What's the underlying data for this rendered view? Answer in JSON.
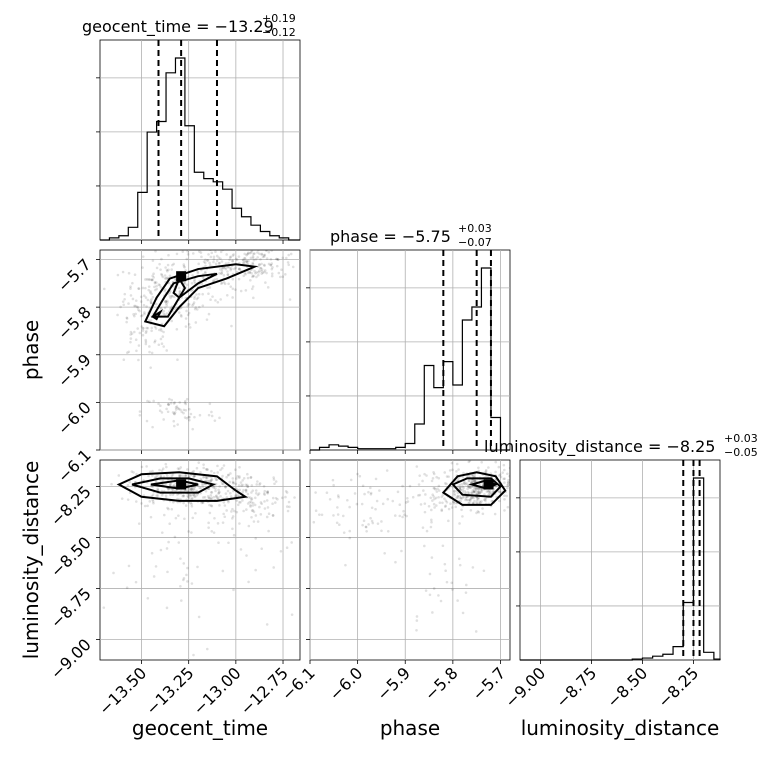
{
  "chart_data": {
    "type": "corner",
    "parameters": [
      "geocent_time",
      "phase",
      "luminosity_distance"
    ],
    "axis_labels": {
      "geocent_time": "geocent_time",
      "phase": "phase",
      "luminosity_distance": "luminosity_distance"
    },
    "ranges": {
      "geocent_time": [
        -13.72,
        -12.66
      ],
      "phase": [
        -6.1,
        -5.68
      ],
      "luminosity_distance": [
        -9.1,
        -8.12
      ]
    },
    "ticks": {
      "geocent_time": [
        -13.5,
        -13.25,
        -13.0,
        -12.75
      ],
      "phase": [
        -6.1,
        -6.0,
        -5.9,
        -5.8,
        -5.7
      ],
      "luminosity_distance": [
        -9.0,
        -8.75,
        -8.5,
        -8.25
      ]
    },
    "tick_labels": {
      "geocent_time": [
        "−13.50",
        "−13.25",
        "−13.00",
        "−12.75"
      ],
      "phase_x": [
        "−6.1",
        "−6.0",
        "−5.9",
        "−5.8",
        "−5.7"
      ],
      "phase_y": [
        "−5.7",
        "−5.8",
        "−5.9",
        "−6.0",
        "−6.1"
      ],
      "luminosity_distance": [
        "−9.00",
        "−8.75",
        "−8.50",
        "−8.25"
      ],
      "luminosity_distance_y": [
        "−8.25",
        "−8.50",
        "−8.75",
        "−9.00"
      ]
    },
    "titles": [
      {
        "param": "geocent_time",
        "main": "geocent_time = −13.29",
        "upper": "+0.19",
        "lower": "−0.12"
      },
      {
        "param": "phase",
        "main": "phase = −5.75",
        "upper": "+0.03",
        "lower": "−0.07"
      },
      {
        "param": "luminosity_distance",
        "main": "luminosity_distance = −8.25",
        "upper": "+0.03",
        "lower": "−0.05"
      }
    ],
    "quantiles": {
      "geocent_time": [
        -13.41,
        -13.29,
        -13.1
      ],
      "phase": [
        -5.82,
        -5.75,
        -5.72
      ],
      "luminosity_distance": [
        -8.3,
        -8.25,
        -8.22
      ]
    },
    "histograms": {
      "geocent_time": {
        "edges": [
          -13.72,
          -13.67,
          -13.62,
          -13.57,
          -13.52,
          -13.47,
          -13.42,
          -13.37,
          -13.32,
          -13.27,
          -13.22,
          -13.17,
          -13.12,
          -13.07,
          -13.02,
          -12.97,
          -12.92,
          -12.87,
          -12.82,
          -12.77,
          -12.72,
          -12.66
        ],
        "counts": [
          0,
          2,
          4,
          12,
          45,
          102,
          112,
          158,
          172,
          108,
          64,
          58,
          55,
          48,
          30,
          22,
          14,
          8,
          4,
          2,
          0
        ]
      },
      "phase": {
        "edges": [
          -6.1,
          -6.08,
          -6.06,
          -6.04,
          -6.02,
          -6.0,
          -5.98,
          -5.96,
          -5.94,
          -5.92,
          -5.9,
          -5.88,
          -5.86,
          -5.84,
          -5.82,
          -5.8,
          -5.78,
          -5.76,
          -5.74,
          -5.72,
          -5.7,
          -5.68
        ],
        "counts": [
          0,
          2,
          4,
          3,
          2,
          1,
          1,
          1,
          1,
          2,
          5,
          20,
          65,
          48,
          68,
          50,
          100,
          110,
          140,
          25,
          0
        ]
      },
      "luminosity_distance": {
        "edges": [
          -9.1,
          -9.05,
          -9.0,
          -8.95,
          -8.9,
          -8.85,
          -8.8,
          -8.75,
          -8.7,
          -8.65,
          -8.6,
          -8.55,
          -8.5,
          -8.45,
          -8.4,
          -8.35,
          -8.3,
          -8.25,
          -8.2,
          -8.15,
          -8.12
        ],
        "counts": [
          0,
          0,
          0,
          0,
          0,
          0,
          0,
          0,
          0,
          0,
          0,
          1,
          2,
          4,
          6,
          14,
          60,
          190,
          8,
          1
        ]
      }
    },
    "scatter_clusters": {
      "geocent_time_vs_phase": [
        {
          "center": [
            -13.35,
            -5.77
          ],
          "spread": [
            0.12,
            0.035
          ],
          "n": 260
        },
        {
          "center": [
            -13.05,
            -5.72
          ],
          "spread": [
            0.15,
            0.025
          ],
          "n": 180
        },
        {
          "center": [
            -12.85,
            -5.7
          ],
          "spread": [
            0.1,
            0.02
          ],
          "n": 90
        },
        {
          "center": [
            -13.5,
            -5.86
          ],
          "spread": [
            0.08,
            0.03
          ],
          "n": 60
        },
        {
          "center": [
            -13.3,
            -6.02
          ],
          "spread": [
            0.1,
            0.02
          ],
          "n": 60
        }
      ],
      "geocent_time_vs_luminosity_distance": [
        {
          "center": [
            -13.28,
            -8.25
          ],
          "spread": [
            0.13,
            0.05
          ],
          "n": 330
        },
        {
          "center": [
            -12.95,
            -8.3
          ],
          "spread": [
            0.13,
            0.06
          ],
          "n": 170
        },
        {
          "center": [
            -13.2,
            -8.6
          ],
          "spread": [
            0.25,
            0.2
          ],
          "n": 70
        }
      ],
      "phase_vs_luminosity_distance": [
        {
          "center": [
            -5.75,
            -8.26
          ],
          "spread": [
            0.035,
            0.05
          ],
          "n": 360
        },
        {
          "center": [
            -5.84,
            -8.3
          ],
          "spread": [
            0.04,
            0.07
          ],
          "n": 80
        },
        {
          "center": [
            -6.0,
            -8.35
          ],
          "spread": [
            0.05,
            0.12
          ],
          "n": 60
        },
        {
          "center": [
            -5.82,
            -8.7
          ],
          "spread": [
            0.05,
            0.15
          ],
          "n": 30
        }
      ]
    },
    "contours": {
      "geocent_time_vs_phase": [
        [
          [
            -13.48,
            -5.83
          ],
          [
            -13.42,
            -5.78
          ],
          [
            -13.35,
            -5.74
          ],
          [
            -13.2,
            -5.72
          ],
          [
            -13.0,
            -5.71
          ],
          [
            -12.9,
            -5.715
          ],
          [
            -13.05,
            -5.74
          ],
          [
            -13.2,
            -5.76
          ],
          [
            -13.3,
            -5.8
          ],
          [
            -13.38,
            -5.84
          ],
          [
            -13.48,
            -5.83
          ]
        ],
        [
          [
            -13.44,
            -5.82
          ],
          [
            -13.38,
            -5.78
          ],
          [
            -13.33,
            -5.75
          ],
          [
            -13.2,
            -5.735
          ],
          [
            -13.1,
            -5.73
          ],
          [
            -13.2,
            -5.75
          ],
          [
            -13.3,
            -5.78
          ],
          [
            -13.36,
            -5.82
          ],
          [
            -13.44,
            -5.82
          ]
        ],
        [
          [
            -13.33,
            -5.77
          ],
          [
            -13.3,
            -5.74
          ],
          [
            -13.27,
            -5.76
          ],
          [
            -13.3,
            -5.78
          ],
          [
            -13.33,
            -5.77
          ]
        ],
        [
          [
            -13.44,
            -5.82
          ],
          [
            -13.4,
            -5.81
          ],
          [
            -13.42,
            -5.825
          ],
          [
            -13.44,
            -5.82
          ]
        ]
      ],
      "geocent_time_vs_luminosity_distance": [
        [
          [
            -13.62,
            -8.24
          ],
          [
            -13.5,
            -8.19
          ],
          [
            -13.3,
            -8.18
          ],
          [
            -13.1,
            -8.2
          ],
          [
            -13.0,
            -8.27
          ],
          [
            -12.95,
            -8.3
          ],
          [
            -13.1,
            -8.32
          ],
          [
            -13.3,
            -8.32
          ],
          [
            -13.5,
            -8.3
          ],
          [
            -13.62,
            -8.24
          ]
        ],
        [
          [
            -13.55,
            -8.24
          ],
          [
            -13.4,
            -8.21
          ],
          [
            -13.25,
            -8.21
          ],
          [
            -13.12,
            -8.24
          ],
          [
            -13.2,
            -8.28
          ],
          [
            -13.4,
            -8.28
          ],
          [
            -13.55,
            -8.24
          ]
        ],
        [
          [
            -13.45,
            -8.24
          ],
          [
            -13.3,
            -8.22
          ],
          [
            -13.2,
            -8.24
          ],
          [
            -13.3,
            -8.26
          ],
          [
            -13.45,
            -8.24
          ]
        ]
      ],
      "phase_vs_luminosity_distance": [
        [
          [
            -5.82,
            -8.28
          ],
          [
            -5.79,
            -8.2
          ],
          [
            -5.75,
            -8.18
          ],
          [
            -5.71,
            -8.2
          ],
          [
            -5.69,
            -8.27
          ],
          [
            -5.72,
            -8.34
          ],
          [
            -5.78,
            -8.34
          ],
          [
            -5.82,
            -8.28
          ]
        ],
        [
          [
            -5.8,
            -8.24
          ],
          [
            -5.77,
            -8.21
          ],
          [
            -5.72,
            -8.21
          ],
          [
            -5.7,
            -8.25
          ],
          [
            -5.72,
            -8.3
          ],
          [
            -5.78,
            -8.29
          ],
          [
            -5.8,
            -8.24
          ]
        ],
        [
          [
            -5.76,
            -8.24
          ],
          [
            -5.73,
            -8.22
          ],
          [
            -5.71,
            -8.24
          ],
          [
            -5.73,
            -8.26
          ],
          [
            -5.76,
            -8.24
          ]
        ]
      ]
    },
    "density_peaks": {
      "geocent_time_vs_phase": [
        [
          -13.29,
          -5.735
        ]
      ],
      "geocent_time_vs_luminosity_distance": [
        [
          -13.29,
          -8.24
        ]
      ],
      "phase_vs_luminosity_distance": [
        [
          -5.725,
          -8.24
        ]
      ]
    },
    "grid": true
  }
}
